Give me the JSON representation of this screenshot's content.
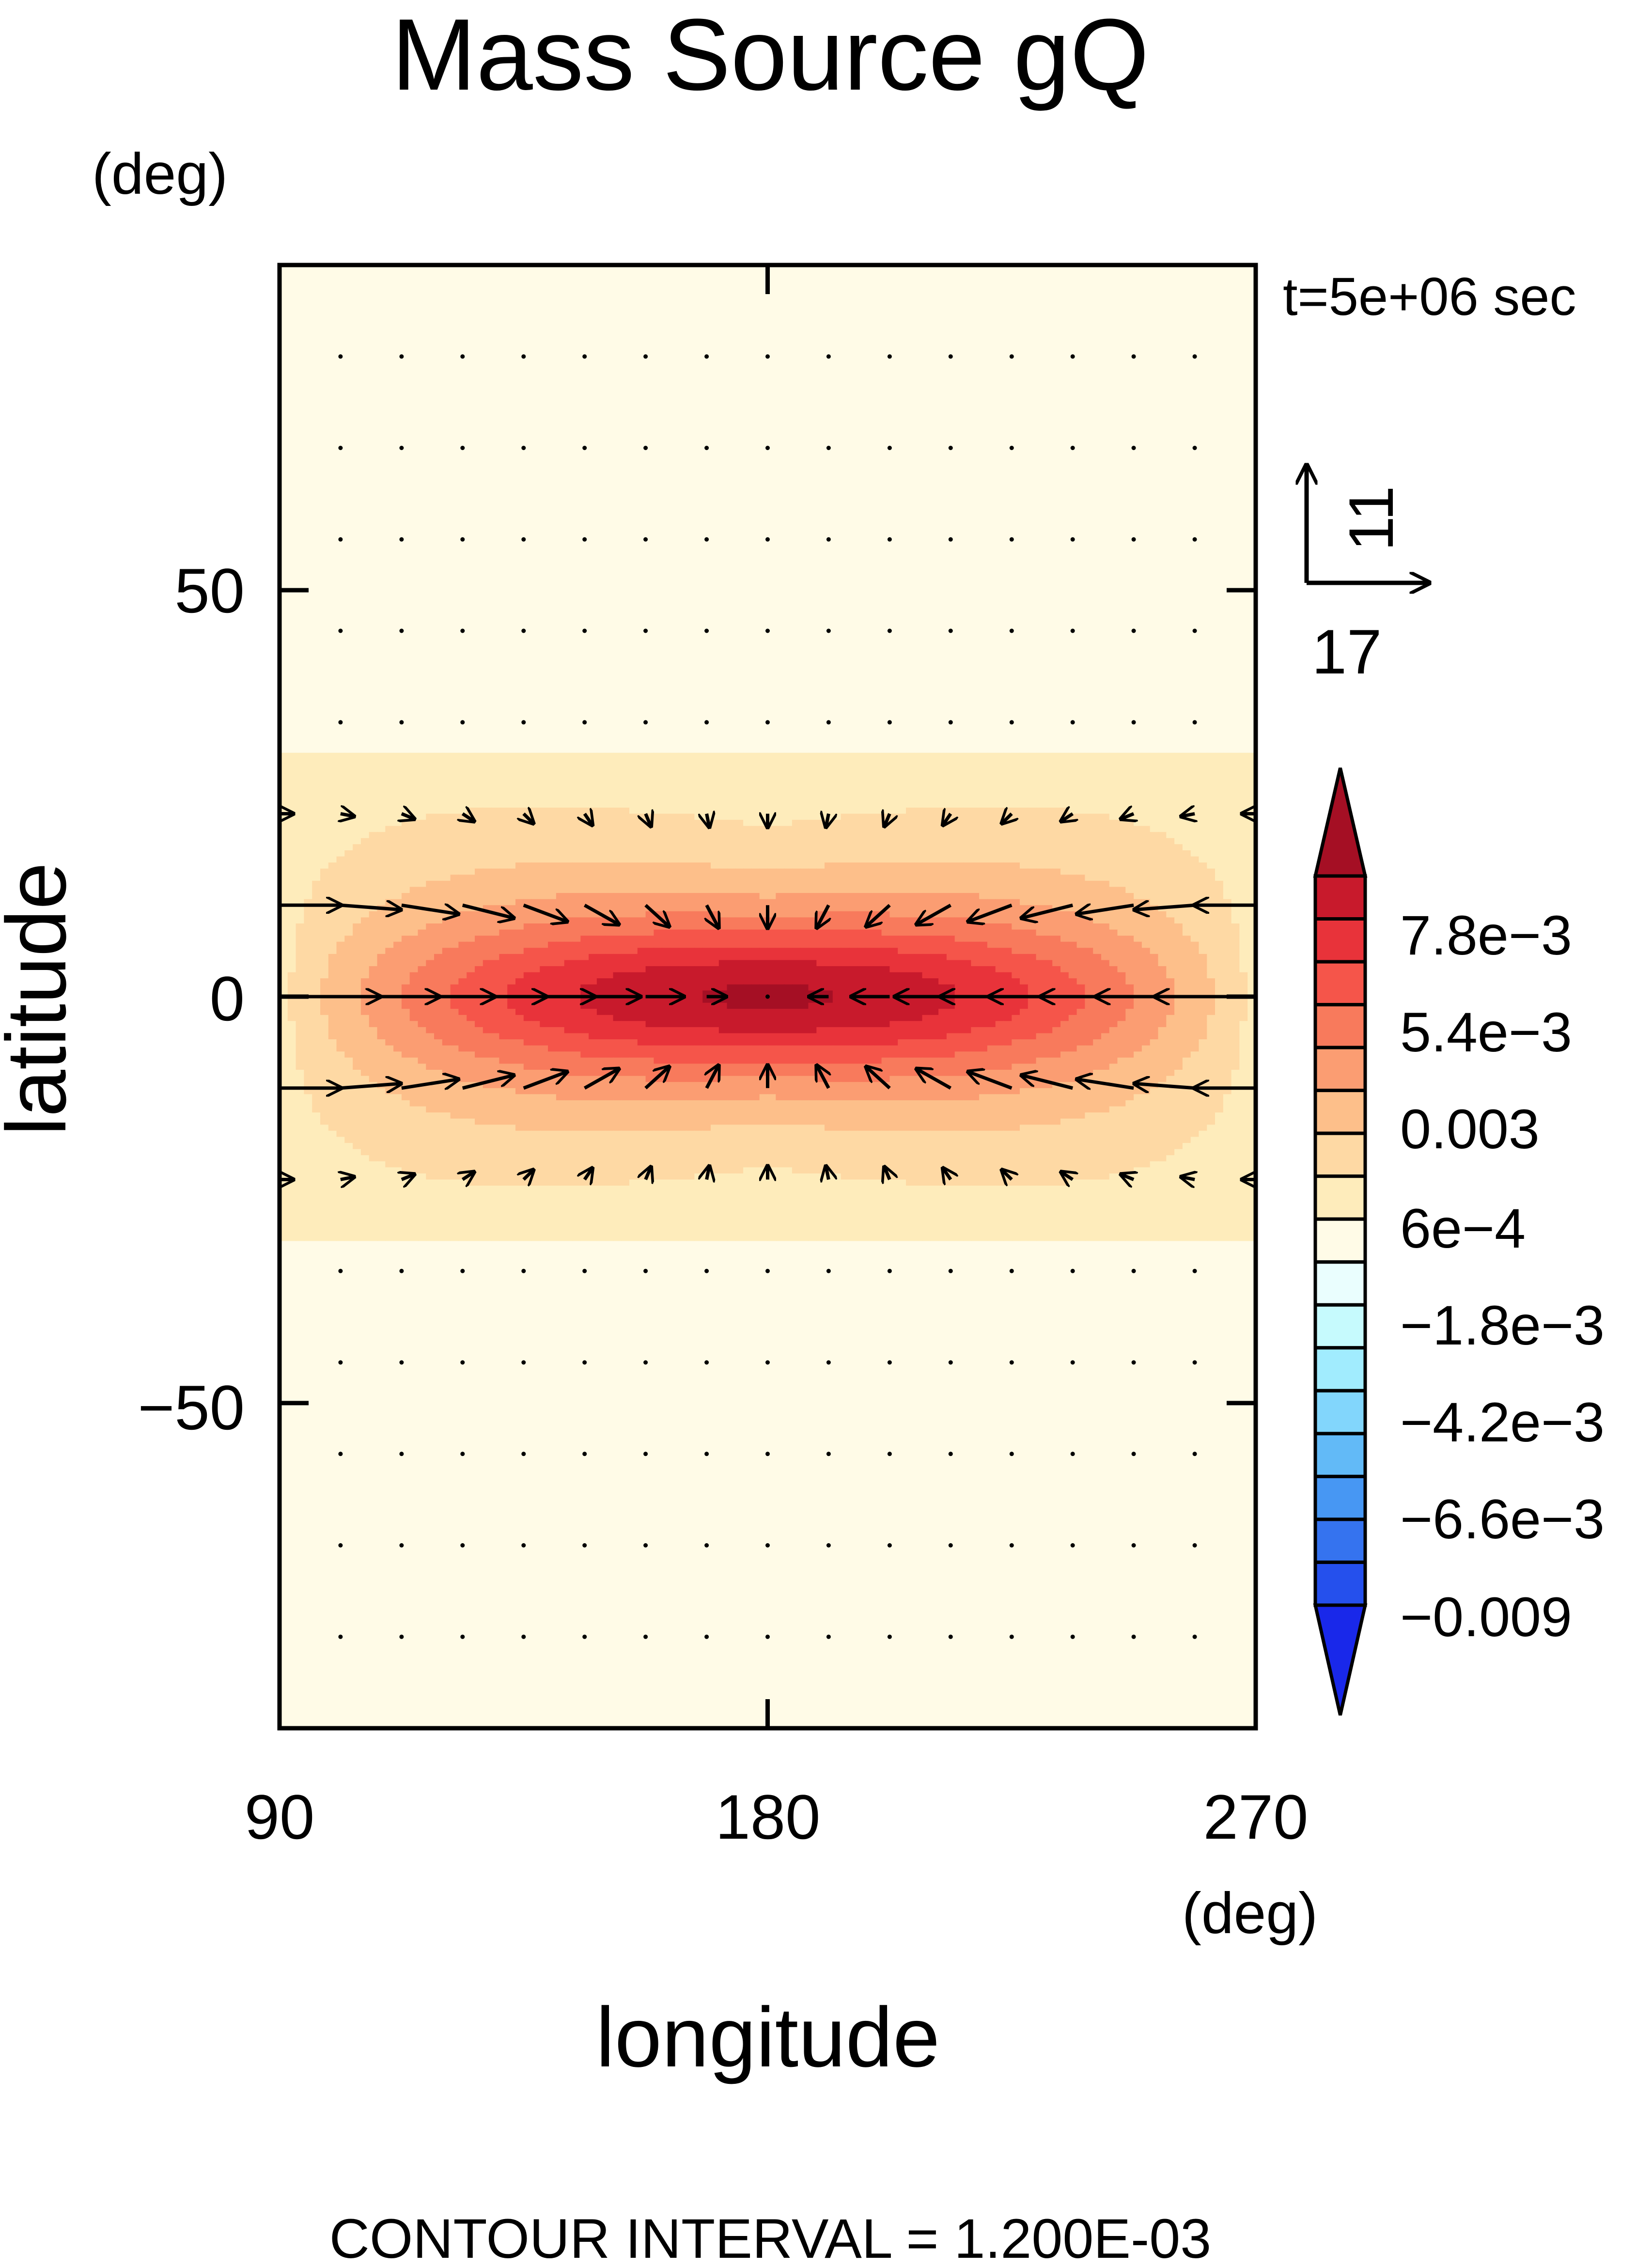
{
  "chart_data": {
    "type": "contour",
    "title": "Mass Source gQ",
    "xlabel": "longitude",
    "ylabel": "latitude",
    "x_unit": "(deg)",
    "y_unit": "(deg)",
    "time_label": "t=5e+06 sec",
    "footer": "CONTOUR INTERVAL = 1.200E-03",
    "xlim": [
      90,
      270
    ],
    "ylim": [
      -90,
      90
    ],
    "x_ticks": [
      90,
      180,
      270
    ],
    "y_ticks": [
      50,
      0,
      -50
    ],
    "x_tick_labels": [
      "90",
      "180",
      "270"
    ],
    "y_tick_labels": [
      "50",
      "0",
      "−50"
    ],
    "contour_interval": 0.0012,
    "field_extremes": {
      "max": 0.009,
      "min": -0.009
    },
    "vector_reference": {
      "x": "17",
      "y": "11"
    },
    "colorbar": {
      "levels_range": [
        -0.0102,
        0.0102
      ],
      "tick_labels": [
        "7.8e−3",
        "5.4e−3",
        "0.003",
        "6e−4",
        "−1.8e−3",
        "−4.2e−3",
        "−6.6e−3",
        "−0.009"
      ],
      "colors": [
        "#a50f24",
        "#c81a2c",
        "#e8333a",
        "#f5554a",
        "#f87a5c",
        "#fb9d72",
        "#fdbf8a",
        "#fed9a4",
        "#feecbb",
        "#fffbe7",
        "#eafefe",
        "#c6fafd",
        "#a1ecfe",
        "#82d6fc",
        "#62baf7",
        "#4797f3",
        "#3573ef",
        "#2550ed",
        "#1928ea"
      ]
    }
  }
}
